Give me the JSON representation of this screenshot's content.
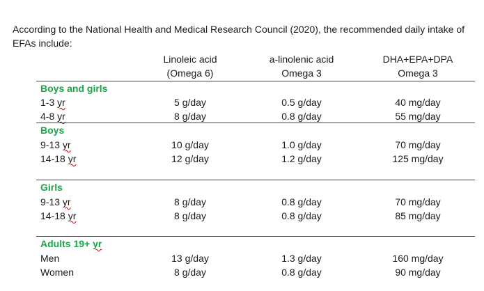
{
  "intro": {
    "text": "According to the National Health and Medical Research Council (2020), the recommended daily intake of EFAs include:"
  },
  "columns": [
    {
      "line1": "Linoleic acid",
      "line2": "(Omega 6)"
    },
    {
      "line1": "a-linolenic acid",
      "line2": "Omega 3"
    },
    {
      "line1": "DHA+EPA+DPA",
      "line2": "Omega 3"
    }
  ],
  "groups": {
    "boys_girls": {
      "title": "Boys and girls",
      "rows": [
        {
          "age": "1-3",
          "unit": "yr",
          "la": "5 g/day",
          "ala": "0.5 g/day",
          "dha": "40 mg/day"
        },
        {
          "age": "4-8",
          "unit": "yr",
          "la": "8 g/day",
          "ala": "0.8 g/day",
          "dha": "55 mg/day"
        }
      ]
    },
    "boys": {
      "title": "Boys",
      "rows": [
        {
          "age": "9-13",
          "unit": "yr",
          "la": "10 g/day",
          "ala": "1.0 g/day",
          "dha": "70 mg/day"
        },
        {
          "age": "14-18",
          "unit": "yr",
          "la": "12 g/day",
          "ala": "1.2 g/day",
          "dha": "125 mg/day"
        }
      ]
    },
    "girls": {
      "title": "Girls",
      "rows": [
        {
          "age": "9-13",
          "unit": "yr",
          "la": "8 g/day",
          "ala": "0.8 g/day",
          "dha": "70 mg/day"
        },
        {
          "age": "14-18",
          "unit": "yr",
          "la": "8 g/day",
          "ala": "0.8 g/day",
          "dha": "85 mg/day"
        }
      ]
    },
    "adults": {
      "title_prefix": "Adults 19+",
      "title_unit": "yr",
      "rows": [
        {
          "label": "Men",
          "la": "13 g/day",
          "ala": "1.3 g/day",
          "dha": "160 mg/day"
        },
        {
          "label": "Women",
          "la": "8 g/day",
          "ala": "0.8 g/day",
          "dha": "90 mg/day"
        }
      ]
    }
  },
  "colors": {
    "group_title": "#1aa548",
    "spellcheck": "#d00000"
  }
}
